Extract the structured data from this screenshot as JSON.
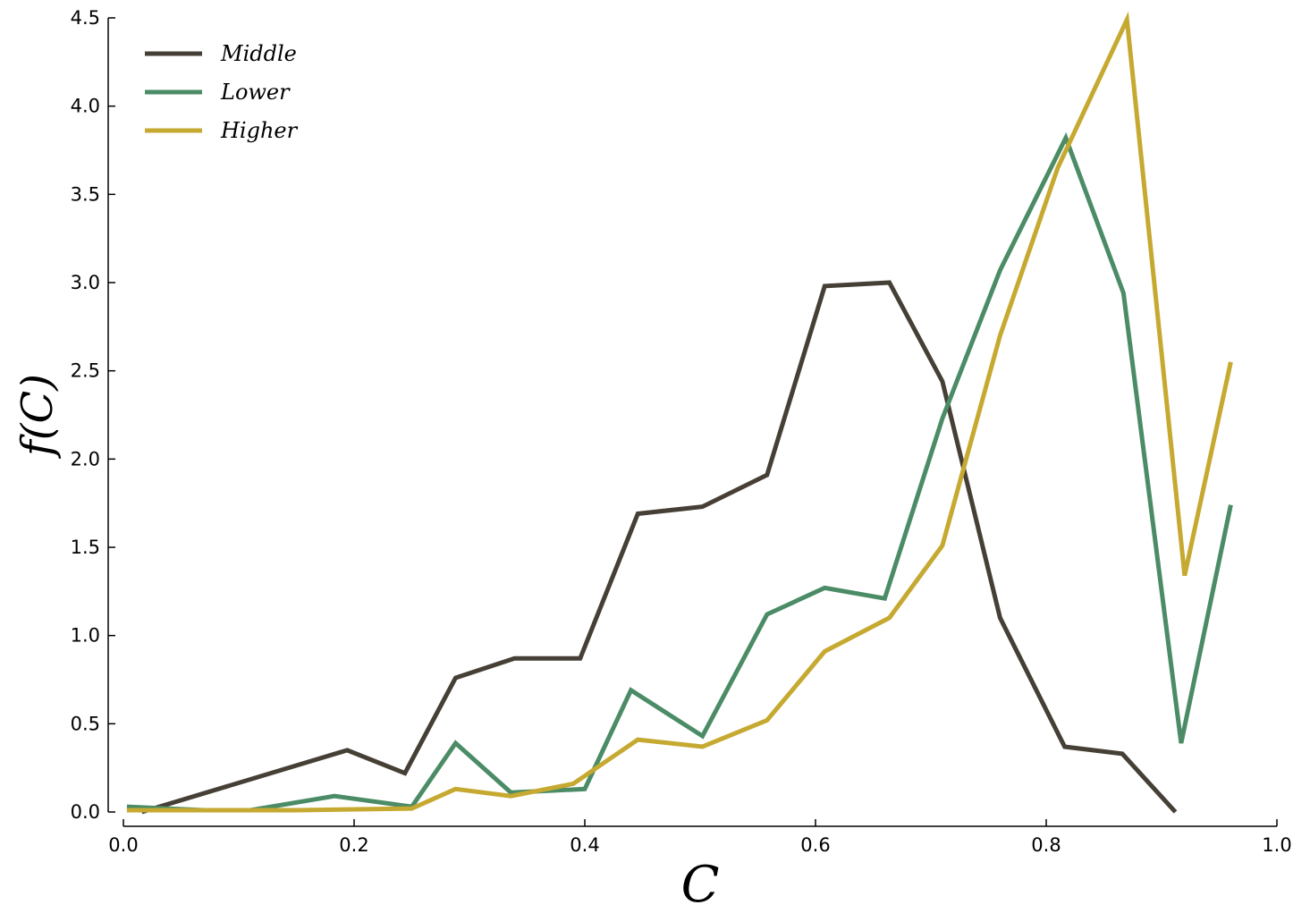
{
  "chart_data": {
    "type": "line",
    "title": "",
    "xlabel": "C",
    "ylabel": "f(C)",
    "xlim": [
      0.0,
      1.0
    ],
    "ylim": [
      0.0,
      4.5
    ],
    "xticks": [
      "0.0",
      "0.2",
      "0.4",
      "0.6",
      "0.8",
      "1.0"
    ],
    "yticks": [
      "0.0",
      "0.5",
      "1.0",
      "1.5",
      "2.0",
      "2.5",
      "3.0",
      "3.5",
      "4.0",
      "4.5"
    ],
    "grid": false,
    "legend_position": "top-left",
    "series": [
      {
        "name": "Middle",
        "color": "#453f35",
        "x": [
          0.016,
          0.194,
          0.244,
          0.288,
          0.339,
          0.396,
          0.446,
          0.502,
          0.558,
          0.608,
          0.664,
          0.71,
          0.76,
          0.816,
          0.866,
          0.912
        ],
        "y": [
          0.0,
          0.35,
          0.22,
          0.76,
          0.87,
          0.87,
          1.69,
          1.73,
          1.91,
          2.98,
          3.0,
          2.44,
          1.1,
          0.37,
          0.33,
          0.0
        ]
      },
      {
        "name": "Lower",
        "color": "#4b8c66",
        "x": [
          0.003,
          0.07,
          0.11,
          0.183,
          0.25,
          0.288,
          0.336,
          0.4,
          0.44,
          0.502,
          0.558,
          0.608,
          0.66,
          0.71,
          0.76,
          0.817,
          0.867,
          0.917,
          0.96
        ],
        "y": [
          0.03,
          0.01,
          0.01,
          0.09,
          0.03,
          0.39,
          0.11,
          0.13,
          0.69,
          0.43,
          1.12,
          1.27,
          1.21,
          2.23,
          3.07,
          3.82,
          2.94,
          0.39,
          1.74
        ]
      },
      {
        "name": "Higher",
        "color": "#c6a930",
        "x": [
          0.003,
          0.07,
          0.15,
          0.25,
          0.288,
          0.336,
          0.39,
          0.446,
          0.502,
          0.558,
          0.608,
          0.664,
          0.71,
          0.76,
          0.81,
          0.87,
          0.92,
          0.96
        ],
        "y": [
          0.01,
          0.01,
          0.01,
          0.02,
          0.13,
          0.09,
          0.16,
          0.41,
          0.37,
          0.52,
          0.91,
          1.1,
          1.51,
          2.7,
          3.65,
          4.49,
          1.34,
          2.55
        ]
      }
    ]
  }
}
